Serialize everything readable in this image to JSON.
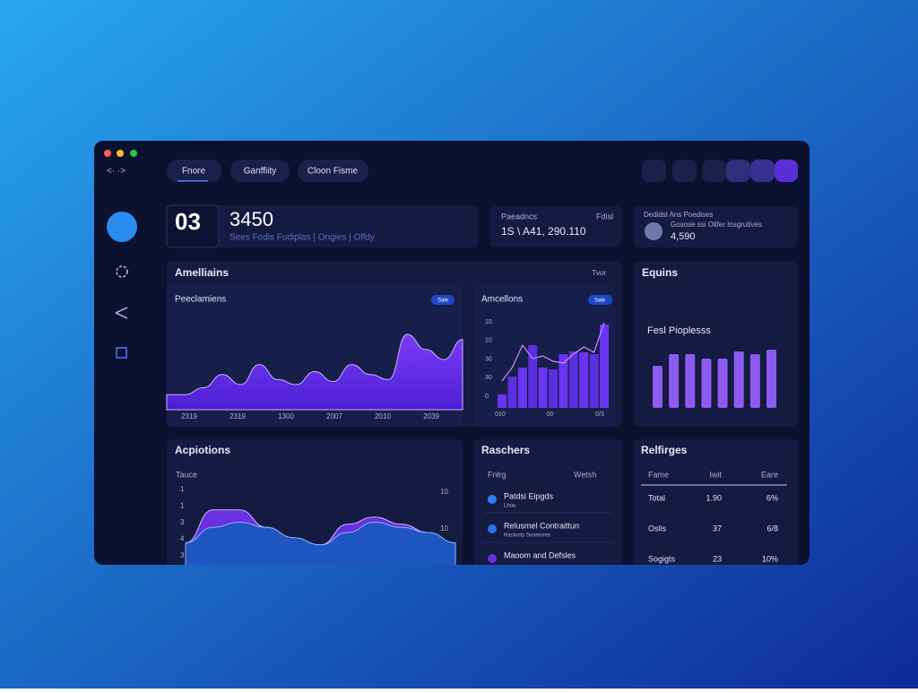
{
  "toolbar": {
    "nav": "<· ·>",
    "tabs": [
      "Fnore",
      "Ganffiity",
      "Cloon Fisme"
    ]
  },
  "kpi": {
    "big": "03",
    "value": "3450",
    "subtitle": "Sees Fodis Fudiplas | Ongies | Olfdy"
  },
  "card_a": {
    "label": "Paeadncs",
    "tag": "Fdisl",
    "value": "1S \\ A41, 290.110"
  },
  "card_b": {
    "title": "Dedidsl Ans Poedises",
    "subtitle": "Gosose ssi Olifer Insgrutives",
    "value": "4,590"
  },
  "panel_top": {
    "title": "Amelliains",
    "action": "Tvor",
    "area": {
      "title": "Peeclamiens",
      "badge": "Sale",
      "x_labels": [
        "2319",
        "2319",
        "1300",
        "2007",
        "2010",
        "2039"
      ],
      "values": [
        15,
        15,
        22,
        35,
        25,
        45,
        30,
        25,
        38,
        28,
        45,
        35,
        30,
        75,
        60,
        50,
        70
      ]
    },
    "bars": {
      "title": "Amcellons",
      "badge": "Sale",
      "y_labels": [
        "10",
        "10",
        "30",
        "30",
        "0"
      ],
      "x_labels": [
        "010",
        "00",
        "0/3"
      ],
      "values": [
        15,
        35,
        45,
        70,
        45,
        43,
        60,
        63,
        62,
        60,
        93
      ],
      "line": [
        30,
        45,
        70,
        55,
        58,
        52,
        50,
        60,
        68,
        62,
        95
      ]
    }
  },
  "panel_equins": {
    "title": "Equins",
    "label": "Fesl Pioplesss",
    "values": [
      47,
      60,
      60,
      55,
      55,
      63,
      60,
      65
    ]
  },
  "panel_bottom": {
    "title": "Acpiotions",
    "axis_title": "Tauce",
    "y_labels": [
      "1",
      "1",
      "3",
      "4",
      "3"
    ],
    "right_labels": [
      "10",
      "10"
    ],
    "series_back": [
      30,
      62,
      62,
      45,
      35,
      28,
      48,
      55,
      48,
      40,
      30
    ],
    "series_front": [
      30,
      45,
      50,
      45,
      35,
      28,
      40,
      50,
      45,
      40,
      30
    ]
  },
  "raschers": {
    "title": "Raschers",
    "headers": [
      "Fnlrg",
      "Wetsh"
    ],
    "rows": [
      [
        "Patdsi Eipgds",
        "Lhou"
      ],
      [
        "Relusmel Contraittun",
        "Raslonts Sovmores"
      ],
      [
        "Maoom and Defsles",
        ""
      ]
    ]
  },
  "relfirges": {
    "title": "Relfirges",
    "headers": [
      "Fame",
      "Iwit",
      "Eare"
    ],
    "rows": [
      [
        "Total",
        "1.90",
        "6%"
      ],
      [
        "Oslis",
        "37",
        "6/8"
      ],
      [
        "Sogigts",
        "23",
        "10%"
      ]
    ]
  }
}
